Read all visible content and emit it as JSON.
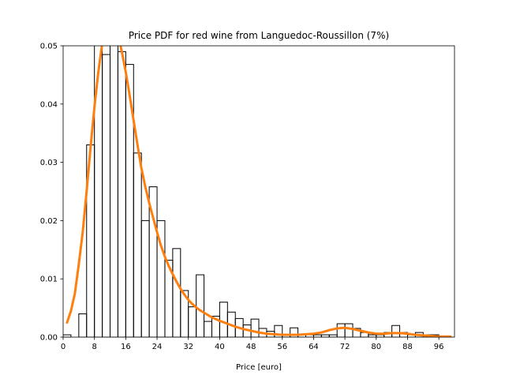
{
  "chart_data": {
    "type": "histogram",
    "title": "Price PDF for red wine from Languedoc-Roussillon (7%)",
    "xlabel": "Price [euro]",
    "ylabel": "",
    "xlim": [
      0,
      100
    ],
    "ylim": [
      0,
      0.05
    ],
    "xticks": [
      0,
      8,
      16,
      24,
      32,
      40,
      48,
      56,
      64,
      72,
      80,
      88,
      96
    ],
    "yticks": [
      0.0,
      0.01,
      0.02,
      0.03,
      0.04,
      0.05
    ],
    "ytick_labels": [
      "0.00",
      "0.01",
      "0.02",
      "0.03",
      "0.04",
      "0.05"
    ],
    "grid": false,
    "histogram": {
      "bin_width": 2,
      "bin_edges_start": 0,
      "density": [
        0.0004,
        0.0,
        0.004,
        0.033,
        0.054,
        0.0485,
        0.052,
        0.049,
        0.0468,
        0.0316,
        0.02,
        0.0258,
        0.02,
        0.0132,
        0.0152,
        0.008,
        0.0052,
        0.0107,
        0.0027,
        0.0036,
        0.006,
        0.0043,
        0.0032,
        0.0021,
        0.0031,
        0.0015,
        0.001,
        0.002,
        0.0004,
        0.0016,
        0.0004,
        0.0004,
        0.0004,
        0.0004,
        0.0004,
        0.0023,
        0.0023,
        0.0015,
        0.0008,
        0.0004,
        0.0004,
        0.0008,
        0.002,
        0.0008,
        0.0004,
        0.0008,
        0.0004,
        0.0004,
        0.0,
        0.0
      ],
      "color": "#000000"
    },
    "kde": {
      "x": [
        1,
        2,
        3,
        4,
        5,
        6,
        7,
        8,
        9,
        10,
        11,
        12,
        13,
        14,
        15,
        16,
        17,
        18,
        19,
        20,
        21,
        22,
        23,
        24,
        25,
        26,
        27,
        28,
        29,
        30,
        31,
        32,
        33,
        34,
        35,
        36,
        38,
        40,
        42,
        44,
        46,
        48,
        50,
        52,
        54,
        56,
        58,
        60,
        62,
        64,
        66,
        68,
        70,
        72,
        74,
        76,
        78,
        80,
        82,
        84,
        86,
        88,
        90,
        92,
        94,
        96,
        98,
        99
      ],
      "y": [
        0.0025,
        0.0045,
        0.0075,
        0.0125,
        0.018,
        0.025,
        0.0325,
        0.0395,
        0.0455,
        0.0505,
        0.0535,
        0.0545,
        0.0538,
        0.052,
        0.049,
        0.0455,
        0.0415,
        0.0372,
        0.033,
        0.029,
        0.0258,
        0.023,
        0.0205,
        0.018,
        0.0157,
        0.0138,
        0.0122,
        0.0108,
        0.0095,
        0.0083,
        0.0073,
        0.0064,
        0.0057,
        0.0051,
        0.0046,
        0.0042,
        0.0034,
        0.0028,
        0.0023,
        0.0018,
        0.0014,
        0.0011,
        0.0008,
        0.0006,
        0.0005,
        0.0004,
        0.0004,
        0.0004,
        0.0005,
        0.0006,
        0.0008,
        0.0012,
        0.0015,
        0.0016,
        0.0014,
        0.0011,
        0.0008,
        0.0006,
        0.0006,
        0.0007,
        0.0007,
        0.0006,
        0.0004,
        0.0003,
        0.0002,
        0.0001,
        0.0001,
        0.0001
      ],
      "color": "#ff7f0e"
    }
  }
}
